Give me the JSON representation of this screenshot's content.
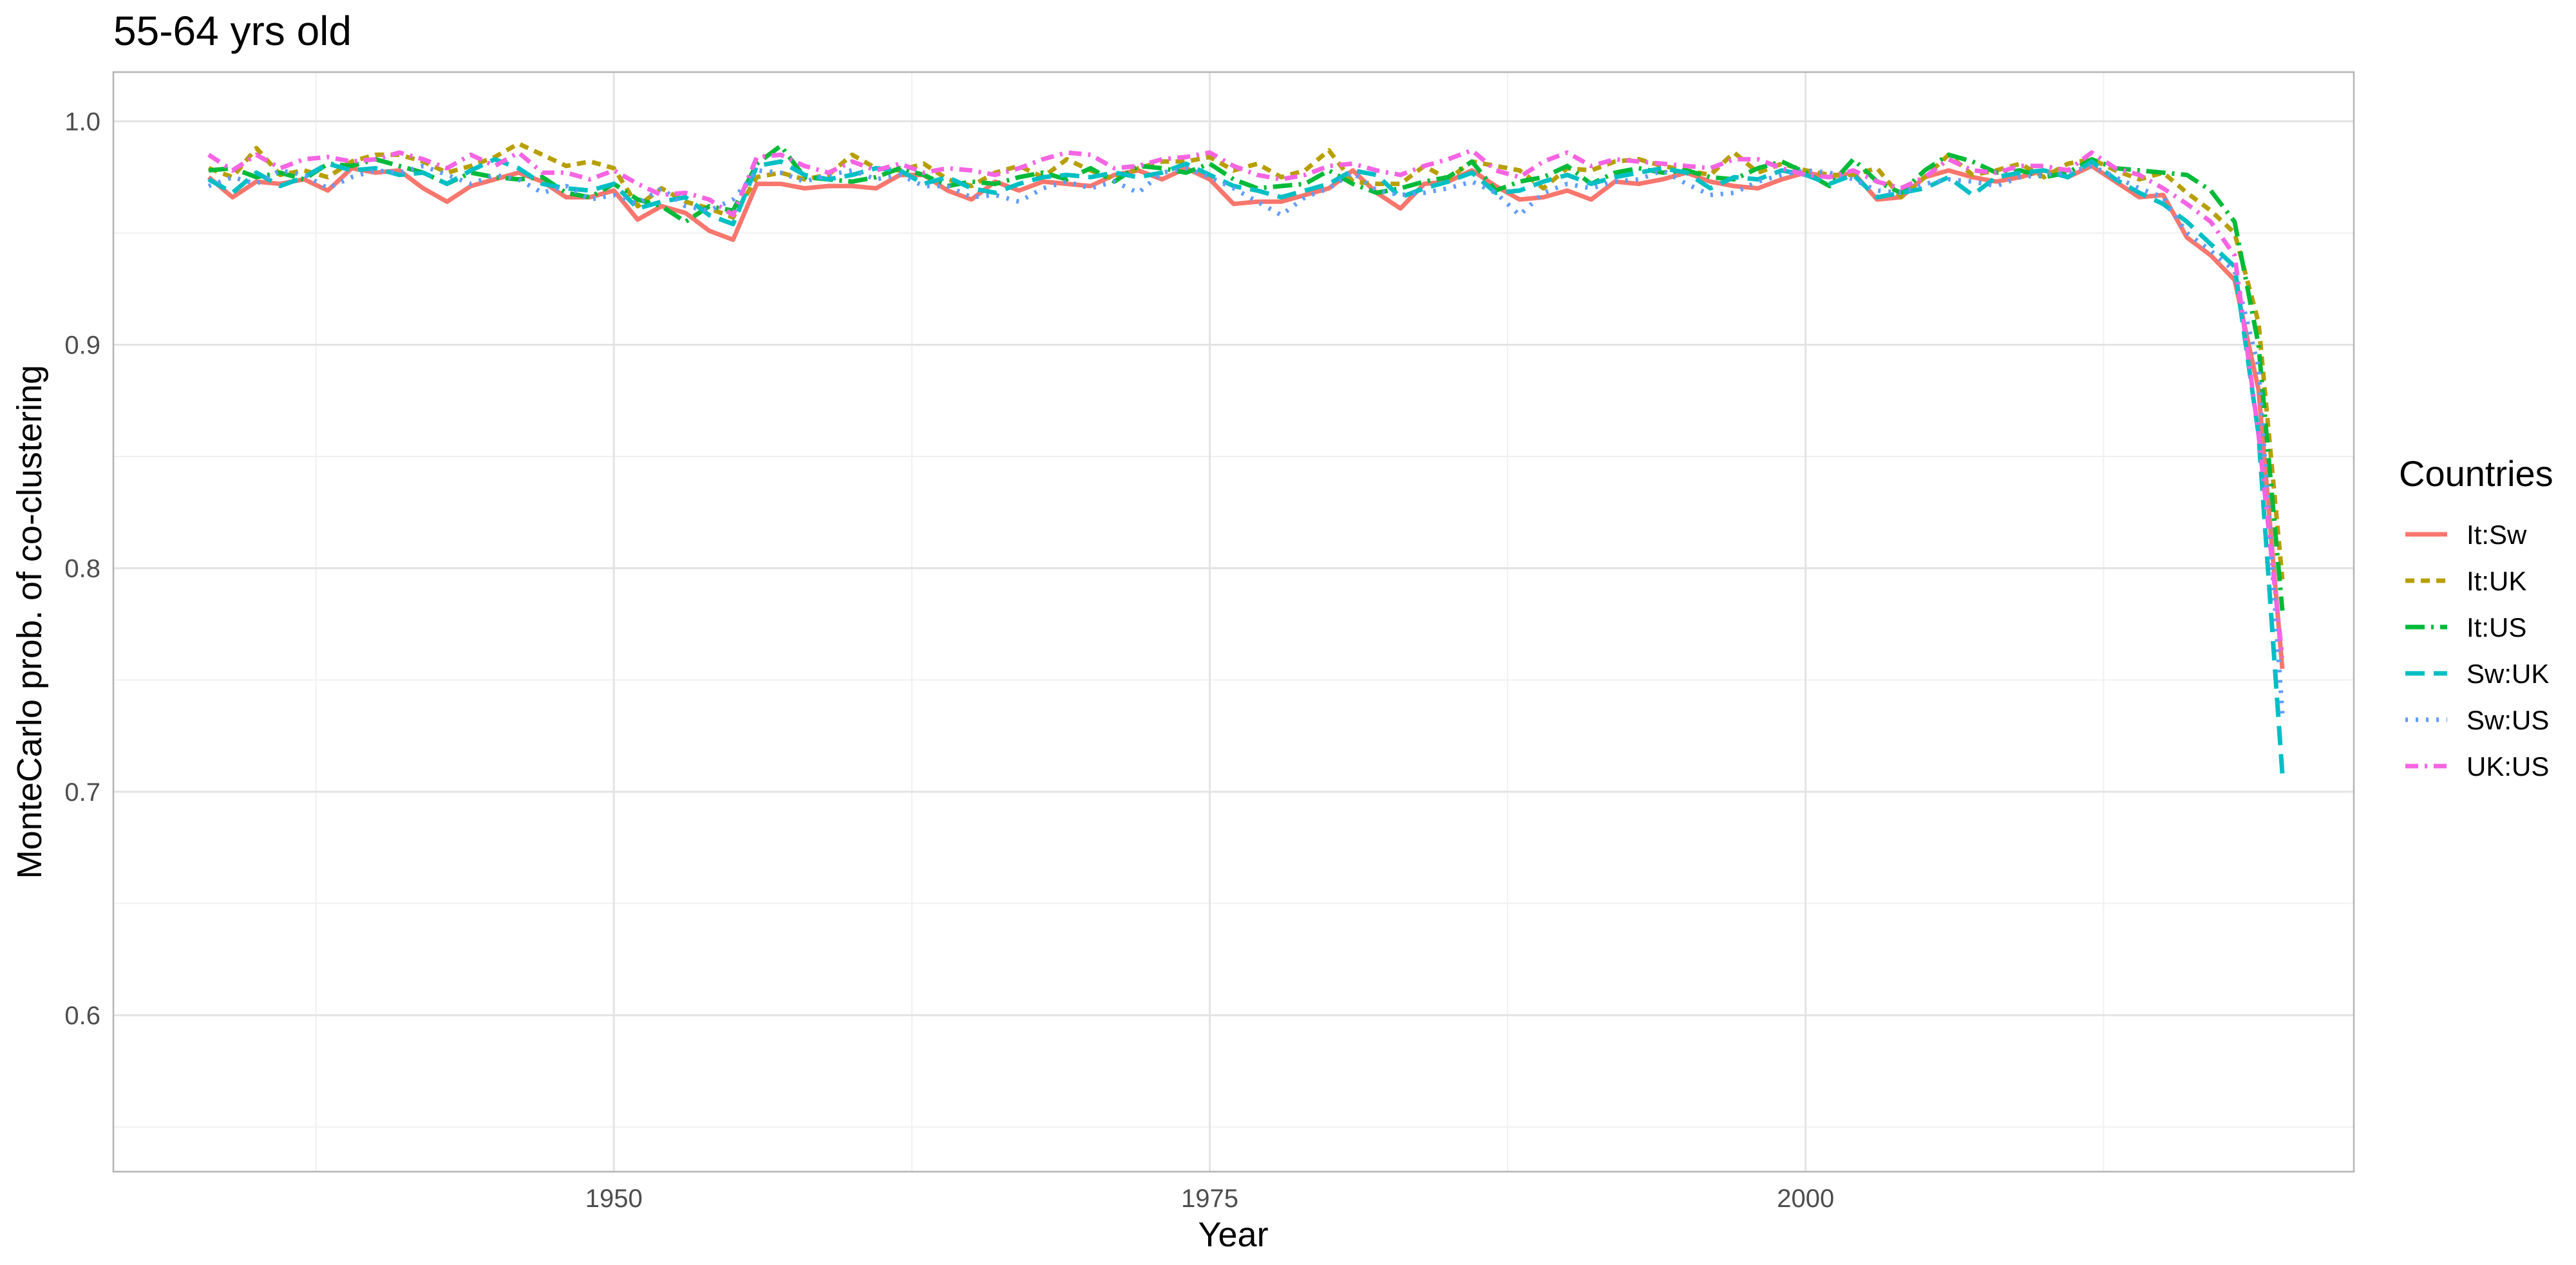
{
  "chart_data": {
    "type": "line",
    "title": "55-64 yrs old",
    "xlabel": "Year",
    "ylabel": "MonteCarlo prob. of co-clustering",
    "xlim": [
      1929,
      2023
    ],
    "ylim": [
      0.53,
      1.022
    ],
    "xticks": [
      1950,
      1975,
      2000
    ],
    "xtick_labels": [
      "1950",
      "1975",
      "2000"
    ],
    "yticks": [
      0.6,
      0.7,
      0.8,
      0.9,
      1.0
    ],
    "ytick_labels": [
      "0.6",
      "0.7",
      "0.8",
      "0.9",
      "1.0"
    ],
    "grid": true,
    "legend_title": "Countries",
    "legend_position": "right",
    "x": [
      1933,
      1934,
      1935,
      1936,
      1937,
      1938,
      1939,
      1940,
      1941,
      1942,
      1943,
      1944,
      1945,
      1946,
      1947,
      1948,
      1949,
      1950,
      1951,
      1952,
      1953,
      1954,
      1955,
      1956,
      1957,
      1958,
      1959,
      1960,
      1961,
      1962,
      1963,
      1964,
      1965,
      1966,
      1967,
      1968,
      1969,
      1970,
      1971,
      1972,
      1973,
      1974,
      1975,
      1976,
      1977,
      1978,
      1979,
      1980,
      1981,
      1982,
      1983,
      1984,
      1985,
      1986,
      1987,
      1988,
      1989,
      1990,
      1991,
      1992,
      1993,
      1994,
      1995,
      1996,
      1997,
      1998,
      1999,
      2000,
      2001,
      2002,
      2003,
      2004,
      2005,
      2006,
      2007,
      2008,
      2009,
      2010,
      2011,
      2012,
      2013,
      2014,
      2015,
      2016,
      2017,
      2018,
      2019,
      2020
    ],
    "series": [
      {
        "name": "It:Sw",
        "color": "#F8766D",
        "dash": "solid",
        "values": [
          0.975,
          0.966,
          0.973,
          0.972,
          0.974,
          0.969,
          0.979,
          0.977,
          0.978,
          0.97,
          0.964,
          0.971,
          0.974,
          0.977,
          0.973,
          0.966,
          0.966,
          0.969,
          0.956,
          0.962,
          0.959,
          0.951,
          0.947,
          0.972,
          0.972,
          0.97,
          0.971,
          0.971,
          0.97,
          0.976,
          0.976,
          0.969,
          0.965,
          0.973,
          0.969,
          0.973,
          0.972,
          0.971,
          0.976,
          0.978,
          0.974,
          0.979,
          0.974,
          0.963,
          0.964,
          0.964,
          0.967,
          0.97,
          0.978,
          0.968,
          0.961,
          0.972,
          0.973,
          0.978,
          0.971,
          0.965,
          0.966,
          0.969,
          0.965,
          0.973,
          0.972,
          0.974,
          0.977,
          0.973,
          0.971,
          0.97,
          0.974,
          0.977,
          0.975,
          0.977,
          0.965,
          0.966,
          0.975,
          0.978,
          0.975,
          0.973,
          0.975,
          0.978,
          0.975,
          0.98,
          0.973,
          0.966,
          0.967,
          0.948,
          0.94,
          0.929,
          0.88,
          0.755
        ]
      },
      {
        "name": "It:UK",
        "color": "#B79F00",
        "dash": "14 10",
        "values": [
          0.979,
          0.975,
          0.988,
          0.976,
          0.978,
          0.975,
          0.982,
          0.985,
          0.985,
          0.982,
          0.977,
          0.98,
          0.984,
          0.99,
          0.985,
          0.98,
          0.982,
          0.979,
          0.962,
          0.97,
          0.964,
          0.961,
          0.957,
          0.975,
          0.977,
          0.974,
          0.976,
          0.985,
          0.979,
          0.978,
          0.981,
          0.974,
          0.971,
          0.977,
          0.98,
          0.975,
          0.983,
          0.978,
          0.974,
          0.979,
          0.982,
          0.982,
          0.984,
          0.978,
          0.981,
          0.975,
          0.978,
          0.987,
          0.973,
          0.972,
          0.972,
          0.98,
          0.974,
          0.982,
          0.98,
          0.978,
          0.97,
          0.979,
          0.978,
          0.982,
          0.983,
          0.98,
          0.978,
          0.976,
          0.986,
          0.977,
          0.981,
          0.978,
          0.976,
          0.976,
          0.979,
          0.966,
          0.975,
          0.985,
          0.976,
          0.978,
          0.981,
          0.975,
          0.981,
          0.983,
          0.978,
          0.974,
          0.977,
          0.968,
          0.96,
          0.95,
          0.91,
          0.795
        ]
      },
      {
        "name": "It:US",
        "color": "#00BA38",
        "dash": "30 10 4 10",
        "values": [
          0.978,
          0.979,
          0.975,
          0.977,
          0.974,
          0.981,
          0.98,
          0.983,
          0.98,
          0.977,
          0.972,
          0.977,
          0.975,
          0.974,
          0.975,
          0.968,
          0.966,
          0.972,
          0.965,
          0.962,
          0.955,
          0.962,
          0.96,
          0.981,
          0.989,
          0.975,
          0.974,
          0.973,
          0.975,
          0.979,
          0.976,
          0.971,
          0.973,
          0.972,
          0.975,
          0.977,
          0.974,
          0.979,
          0.973,
          0.98,
          0.979,
          0.977,
          0.981,
          0.974,
          0.97,
          0.971,
          0.972,
          0.978,
          0.972,
          0.968,
          0.97,
          0.973,
          0.975,
          0.982,
          0.969,
          0.973,
          0.975,
          0.98,
          0.972,
          0.977,
          0.979,
          0.977,
          0.978,
          0.975,
          0.974,
          0.979,
          0.982,
          0.977,
          0.971,
          0.983,
          0.973,
          0.968,
          0.978,
          0.985,
          0.982,
          0.977,
          0.978,
          0.975,
          0.977,
          0.983,
          0.979,
          0.978,
          0.977,
          0.976,
          0.969,
          0.955,
          0.9,
          0.781
        ]
      },
      {
        "name": "Sw:UK",
        "color": "#00BFC4",
        "dash": "30 14",
        "values": [
          0.974,
          0.968,
          0.977,
          0.971,
          0.975,
          0.981,
          0.978,
          0.979,
          0.976,
          0.977,
          0.972,
          0.978,
          0.983,
          0.979,
          0.972,
          0.97,
          0.969,
          0.972,
          0.961,
          0.964,
          0.966,
          0.958,
          0.954,
          0.98,
          0.982,
          0.976,
          0.974,
          0.976,
          0.979,
          0.978,
          0.972,
          0.975,
          0.97,
          0.968,
          0.972,
          0.975,
          0.976,
          0.975,
          0.977,
          0.975,
          0.977,
          0.981,
          0.976,
          0.971,
          0.969,
          0.966,
          0.969,
          0.972,
          0.978,
          0.976,
          0.966,
          0.97,
          0.973,
          0.977,
          0.968,
          0.969,
          0.973,
          0.976,
          0.972,
          0.975,
          0.977,
          0.979,
          0.977,
          0.97,
          0.975,
          0.974,
          0.978,
          0.976,
          0.972,
          0.976,
          0.966,
          0.968,
          0.97,
          0.975,
          0.967,
          0.975,
          0.977,
          0.978,
          0.975,
          0.982,
          0.974,
          0.968,
          0.963,
          0.955,
          0.945,
          0.935,
          0.86,
          0.708
        ]
      },
      {
        "name": "Sw:US",
        "color": "#619CFF",
        "dash": "4 12",
        "values": [
          0.971,
          0.975,
          0.972,
          0.978,
          0.976,
          0.97,
          0.975,
          0.978,
          0.977,
          0.98,
          0.976,
          0.972,
          0.976,
          0.974,
          0.968,
          0.971,
          0.965,
          0.967,
          0.963,
          0.97,
          0.962,
          0.96,
          0.965,
          0.978,
          0.977,
          0.973,
          0.976,
          0.978,
          0.974,
          0.976,
          0.971,
          0.971,
          0.966,
          0.967,
          0.964,
          0.97,
          0.973,
          0.97,
          0.973,
          0.968,
          0.977,
          0.979,
          0.975,
          0.97,
          0.964,
          0.958,
          0.966,
          0.97,
          0.977,
          0.969,
          0.967,
          0.968,
          0.97,
          0.973,
          0.968,
          0.958,
          0.968,
          0.972,
          0.97,
          0.973,
          0.974,
          0.978,
          0.972,
          0.967,
          0.968,
          0.973,
          0.976,
          0.978,
          0.977,
          0.974,
          0.969,
          0.968,
          0.972,
          0.974,
          0.973,
          0.971,
          0.975,
          0.976,
          0.977,
          0.98,
          0.975,
          0.97,
          0.966,
          0.95,
          0.942,
          0.933,
          0.89,
          0.735
        ]
      },
      {
        "name": "UK:US",
        "color": "#F564E3",
        "dash": "20 10 4 10",
        "values": [
          0.985,
          0.978,
          0.985,
          0.979,
          0.983,
          0.984,
          0.982,
          0.983,
          0.986,
          0.983,
          0.979,
          0.985,
          0.98,
          0.986,
          0.977,
          0.977,
          0.974,
          0.978,
          0.972,
          0.967,
          0.968,
          0.965,
          0.958,
          0.984,
          0.985,
          0.98,
          0.977,
          0.982,
          0.978,
          0.981,
          0.977,
          0.979,
          0.978,
          0.976,
          0.979,
          0.983,
          0.986,
          0.985,
          0.979,
          0.98,
          0.983,
          0.984,
          0.986,
          0.98,
          0.976,
          0.974,
          0.976,
          0.98,
          0.981,
          0.978,
          0.976,
          0.98,
          0.983,
          0.987,
          0.978,
          0.975,
          0.982,
          0.986,
          0.98,
          0.983,
          0.982,
          0.981,
          0.98,
          0.979,
          0.983,
          0.983,
          0.979,
          0.976,
          0.975,
          0.978,
          0.973,
          0.97,
          0.975,
          0.983,
          0.978,
          0.977,
          0.98,
          0.98,
          0.978,
          0.986,
          0.979,
          0.976,
          0.97,
          0.963,
          0.955,
          0.94,
          0.86,
          0.76
        ]
      }
    ]
  }
}
